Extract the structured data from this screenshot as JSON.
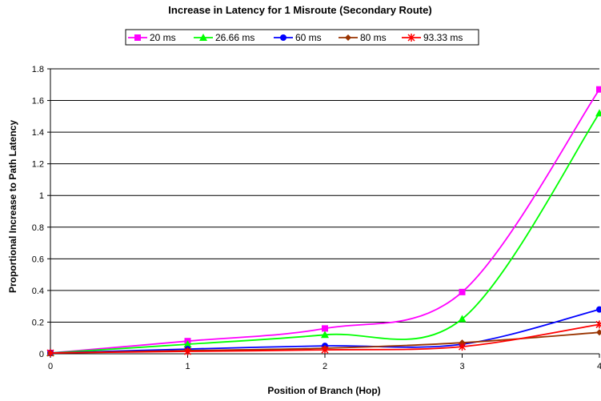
{
  "chart_data": {
    "type": "line",
    "title": "Increase in Latency for 1 Misroute (Secondary Route)",
    "xlabel": "Position of Branch (Hop)",
    "ylabel": "Proportional Increase to Path Latency",
    "x": [
      0,
      1,
      2,
      3,
      4
    ],
    "x_ticks": [
      "0",
      "1",
      "2",
      "3",
      "4"
    ],
    "xlim": [
      0,
      4
    ],
    "ylim": [
      0,
      1.8
    ],
    "y_ticks": [
      "0",
      "0.2",
      "0.4",
      "0.6",
      "0.8",
      "1",
      "1.2",
      "1.4",
      "1.6",
      "1.8"
    ],
    "grid": "horizontal",
    "smoothed": true,
    "legend_position": "top",
    "series": [
      {
        "name": "20 ms",
        "color": "#ff00ff",
        "marker": "square",
        "values": [
          0.005,
          0.08,
          0.16,
          0.39,
          1.67
        ]
      },
      {
        "name": "26.66 ms",
        "color": "#00ff00",
        "marker": "triangle",
        "values": [
          0.005,
          0.06,
          0.12,
          0.22,
          1.52
        ]
      },
      {
        "name": "60 ms",
        "color": "#0000ff",
        "marker": "circle",
        "values": [
          0.005,
          0.03,
          0.05,
          0.06,
          0.28
        ]
      },
      {
        "name": "80 ms",
        "color": "#993300",
        "marker": "diamond",
        "values": [
          0.005,
          0.02,
          0.035,
          0.07,
          0.135
        ]
      },
      {
        "name": "93.33 ms",
        "color": "#ff0000",
        "marker": "star",
        "values": [
          0.005,
          0.015,
          0.025,
          0.045,
          0.185
        ]
      }
    ]
  }
}
